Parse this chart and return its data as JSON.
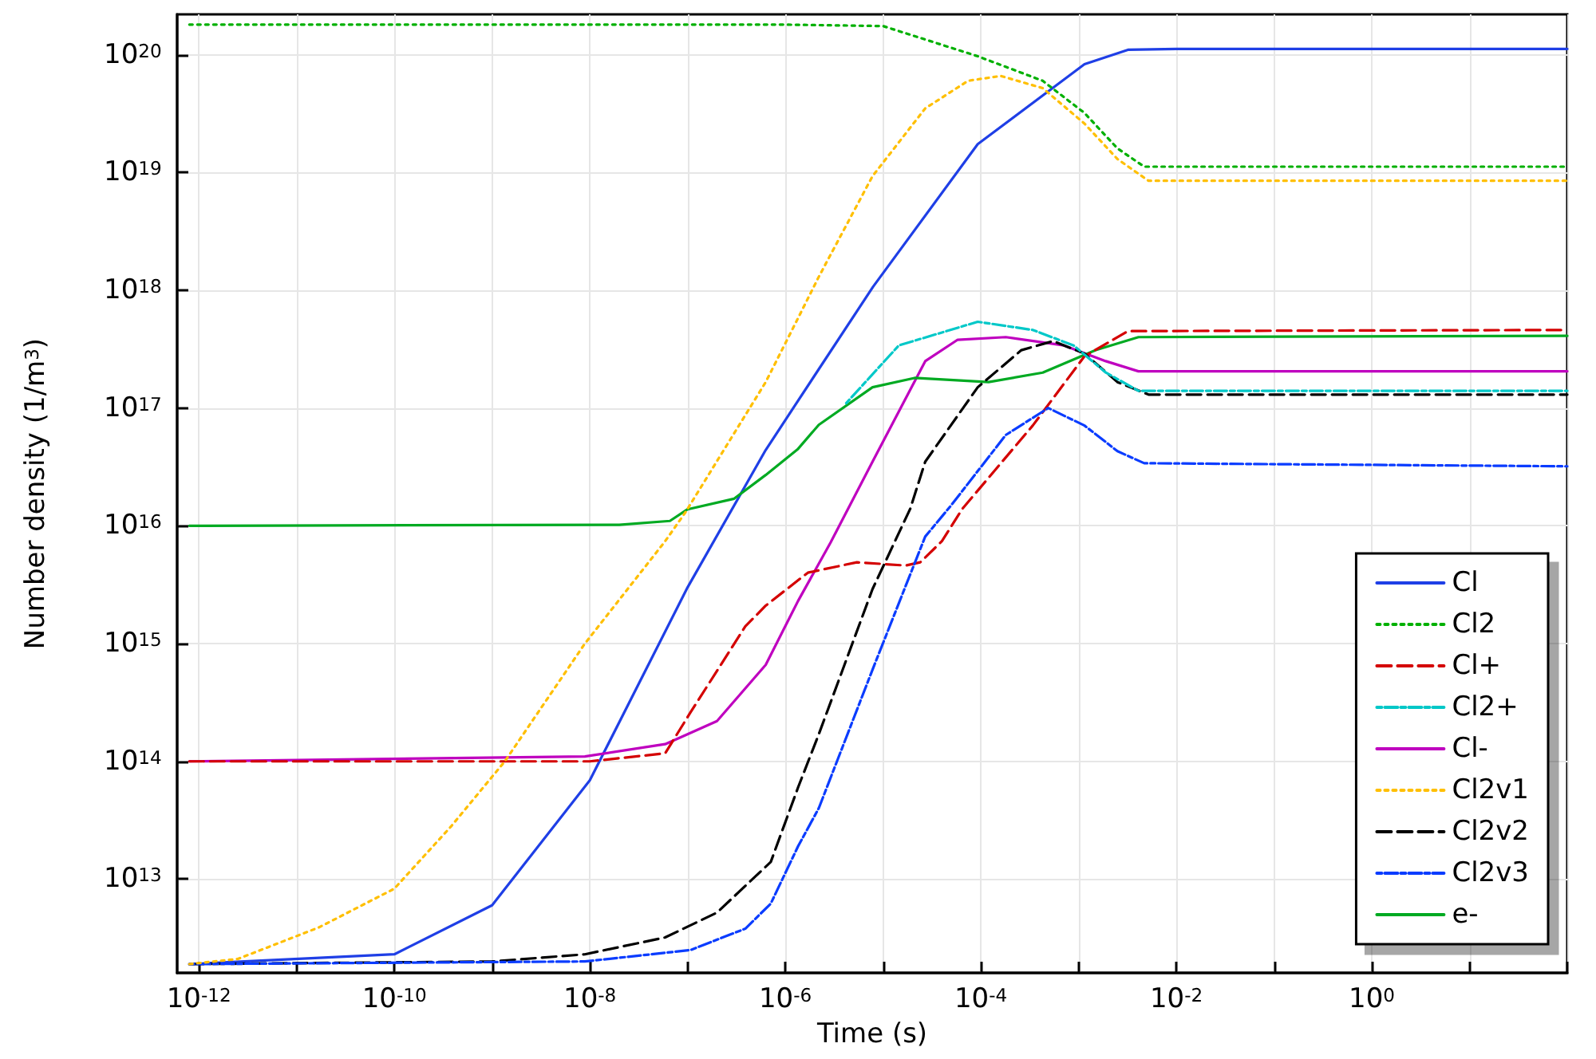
{
  "chart_data": {
    "type": "line",
    "xlabel": "Time (s)",
    "ylabel": "Number density (1/m$^{3}$)",
    "log": "xy",
    "grid": true,
    "legend": "bottom right",
    "marker": "none",
    "xlim": [
      6e-13,
      100
    ],
    "ylim": [
      1600000000000.0,
      2.2e+20
    ],
    "xticks": [
      {
        "value": 1e-12,
        "label": "10$^{-12}$"
      },
      {
        "value": 1e-11,
        "label": null
      },
      {
        "value": 1e-10,
        "label": "10$^{-10}$"
      },
      {
        "value": 1e-09,
        "label": null
      },
      {
        "value": 1e-08,
        "label": "10$^{-8}$"
      },
      {
        "value": 1e-07,
        "label": null
      },
      {
        "value": 1e-06,
        "label": "10$^{-6}$"
      },
      {
        "value": 1e-05,
        "label": null
      },
      {
        "value": 0.0001,
        "label": "10$^{-4}$"
      },
      {
        "value": 0.001,
        "label": null
      },
      {
        "value": 0.01,
        "label": "10$^{-2}$"
      },
      {
        "value": 0.1,
        "label": null
      },
      {
        "value": 1,
        "label": "10$^{0}$"
      },
      {
        "value": 10,
        "label": null
      },
      {
        "value": 100,
        "label": null
      }
    ],
    "yticks": [
      {
        "value": 10000000000000.0,
        "label": "10$^{13}$"
      },
      {
        "value": 100000000000000.0,
        "label": "10$^{14}$"
      },
      {
        "value": 1000000000000000.0,
        "label": "10$^{15}$"
      },
      {
        "value": 1e+16,
        "label": "10$^{16}$"
      },
      {
        "value": 1e+17,
        "label": "10$^{17}$"
      },
      {
        "value": 1e+18,
        "label": "10$^{18}$"
      },
      {
        "value": 1e+19,
        "label": "10$^{19}$"
      },
      {
        "value": 1e+20,
        "label": "10$^{20}$"
      }
    ],
    "series": [
      {
        "name": "Cl",
        "color": "#1f3fe6",
        "line_style": "solid",
        "x": [
          8e-13,
          1e-10,
          1e-09,
          1e-08,
          1e-07,
          6.3e-07,
          1e-06,
          7.9e-06,
          9.3e-05,
          0.00115,
          0.0032,
          0.01,
          100
        ],
        "values": [
          1900000000000.0,
          2300000000000.0,
          6000000000000.0,
          69000000000000.0,
          3000000000000000.0,
          4.4e+16,
          7.9e+16,
          1.07e+18,
          1.74e+19,
          8.3e+19,
          1.1e+20,
          1.12e+20,
          1.12e+20
        ]
      },
      {
        "name": "Cl2",
        "color": "#00b000",
        "line_style": "dotted",
        "x": [
          8e-13,
          1e-06,
          1e-05,
          9.3e-05,
          0.00043,
          0.00115,
          0.0025,
          0.0047,
          100
        ],
        "values": [
          1.8e+20,
          1.8e+20,
          1.75e+20,
          9.7e+19,
          6e+19,
          3.2e+19,
          1.6e+19,
          1.12e+19,
          1.12e+19
        ]
      },
      {
        "name": "Cl+",
        "color": "#d40000",
        "line_style": "dashed",
        "x": [
          8e-13,
          1e-08,
          5.9e-08,
          1.07e-07,
          3.9e-07,
          6.3e-07,
          1.7e-06,
          5.4e-06,
          1.7e-05,
          2.4e-05,
          4e-05,
          6.5e-05,
          0.00034,
          0.00115,
          0.0032,
          100
        ],
        "values": [
          100000000000000.0,
          100000000000000.0,
          117000000000000.0,
          260000000000000.0,
          1400000000000000.0,
          2100000000000000.0,
          4000000000000000.0,
          4900000000000000.0,
          4600000000000000.0,
          4900000000000000.0,
          7400000000000000.0,
          1.4e+16,
          7.1e+16,
          2.75e+17,
          4.5e+17,
          4.6e+17
        ]
      },
      {
        "name": "Cl2+",
        "color": "#00c8c8",
        "line_style": "dashdot",
        "x": [
          4.2e-06,
          1.45e-05,
          9.3e-05,
          0.00034,
          0.00089,
          0.0019,
          0.0041,
          100
        ],
        "values": [
          1.1e+17,
          3.4e+17,
          5.4e+17,
          4.6e+17,
          3.4e+17,
          2e+17,
          1.4e+17,
          1.4e+17
        ]
      },
      {
        "name": "Cl-",
        "color": "#bf00bf",
        "line_style": "solid",
        "x": [
          8e-13,
          8.9e-09,
          5.9e-08,
          2e-07,
          6.3e-07,
          1.35e-06,
          2.9e-06,
          7.8e-06,
          2.7e-05,
          5.8e-05,
          0.00018,
          0.00071,
          0.0019,
          0.0041,
          100
        ],
        "values": [
          100000000000000.0,
          110000000000000.0,
          140000000000000.0,
          220000000000000.0,
          660000000000000.0,
          2300000000000000.0,
          7200000000000000.0,
          3.5e+16,
          2.5e+17,
          3.8e+17,
          4e+17,
          3.4e+17,
          2.5e+17,
          2.05e+17,
          2.05e+17
        ]
      },
      {
        "name": "Cl2v1",
        "color": "#ffbf00",
        "line_style": "dotted",
        "x": [
          8e-13,
          2.5e-12,
          1.7e-11,
          1e-10,
          3.8e-10,
          1.35e-09,
          8.9e-09,
          5.9e-08,
          9.5e-08,
          6.3e-07,
          1.35e-06,
          2.2e-06,
          7.8e-06,
          2.7e-05,
          7.4e-05,
          0.00016,
          0.00043,
          0.00115,
          0.0025,
          0.0052,
          100
        ],
        "values": [
          1900000000000.0,
          2100000000000.0,
          3900000000000.0,
          8300000000000.0,
          28000000000000.0,
          100000000000000.0,
          1000000000000000.0,
          7400000000000000.0,
          1.3e+16,
          1.66e+17,
          5.8e+17,
          1.3e+18,
          9.3e+18,
          3.5e+19,
          6e+19,
          6.6e+19,
          5.2e+19,
          2.6e+19,
          1.3e+19,
          8.5e+18,
          8.5e+18
        ]
      },
      {
        "name": "Cl2v2",
        "color": "#000000",
        "line_style": "dashed",
        "x": [
          8e-13,
          1e-09,
          8.9e-09,
          5.9e-08,
          2e-07,
          7.1e-07,
          1.35e-06,
          2.2e-06,
          7.8e-06,
          1.9e-05,
          2.7e-05,
          9.3e-05,
          0.00026,
          0.00055,
          0.00115,
          0.0025,
          0.0052,
          100
        ],
        "values": [
          1900000000000.0,
          2000000000000.0,
          2300000000000.0,
          3200000000000.0,
          5200000000000.0,
          14000000000000.0,
          60000000000000.0,
          170000000000000.0,
          2900000000000000.0,
          1.4e+16,
          3.5e+16,
          1.5e+17,
          3.1e+17,
          3.7e+17,
          2.9e+17,
          1.66e+17,
          1.3e+17,
          1.3e+17
        ]
      },
      {
        "name": "Cl2v3",
        "color": "#0a3cff",
        "line_style": "dashdot",
        "x": [
          8e-13,
          8.9e-09,
          1.07e-07,
          3.9e-07,
          7.1e-07,
          1.35e-06,
          2.2e-06,
          7.8e-06,
          2.7e-05,
          5e-05,
          0.00018,
          0.00049,
          0.00115,
          0.0025,
          0.0047,
          100
        ],
        "values": [
          1900000000000.0,
          2000000000000.0,
          2500000000000.0,
          3800000000000.0,
          6200000000000.0,
          19000000000000.0,
          40000000000000.0,
          600000000000000.0,
          8100000000000000.0,
          1.5e+16,
          5.9e+16,
          1e+17,
          7.1e+16,
          4.3e+16,
          3.4e+16,
          3.2e+16
        ]
      },
      {
        "name": "e-",
        "color": "#00aa22",
        "line_style": "solid",
        "x": [
          8e-13,
          2e-08,
          6.6e-08,
          1e-07,
          3e-07,
          6.3e-07,
          1.35e-06,
          2.2e-06,
          7.8e-06,
          2.1e-05,
          0.00012,
          0.00043,
          0.0015,
          0.0041,
          100
        ],
        "values": [
          1e+16,
          1.02e+16,
          1.1e+16,
          1.38e+16,
          1.7e+16,
          2.7e+16,
          4.5e+16,
          7.2e+16,
          1.5e+17,
          1.8e+17,
          1.66e+17,
          2e+17,
          3.1e+17,
          4e+17,
          4.1e+17
        ]
      }
    ]
  }
}
